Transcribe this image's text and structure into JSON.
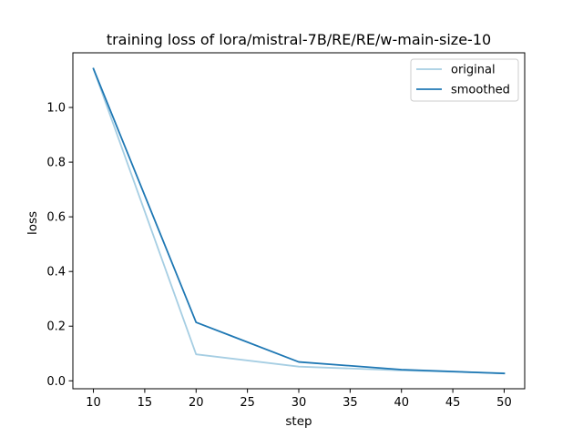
{
  "chart_data": {
    "type": "line",
    "title": "training loss of lora/mistral-7B/RE/RE/w-main-size-10",
    "xlabel": "step",
    "ylabel": "loss",
    "x": [
      10,
      20,
      30,
      40,
      50
    ],
    "series": [
      {
        "name": "original",
        "color": "#a6cee3",
        "values": [
          1.142,
          0.097,
          0.052,
          0.038,
          0.028
        ]
      },
      {
        "name": "smoothed",
        "color": "#1f78b4",
        "values": [
          1.142,
          0.214,
          0.069,
          0.041,
          0.027
        ]
      }
    ],
    "xlim": [
      8,
      52
    ],
    "ylim": [
      -0.029,
      1.2
    ],
    "xticks": [
      10,
      15,
      20,
      25,
      30,
      35,
      40,
      45,
      50
    ],
    "yticks": [
      0.0,
      0.2,
      0.4,
      0.6,
      0.8,
      1.0
    ],
    "grid": false,
    "legend": "top-right"
  }
}
